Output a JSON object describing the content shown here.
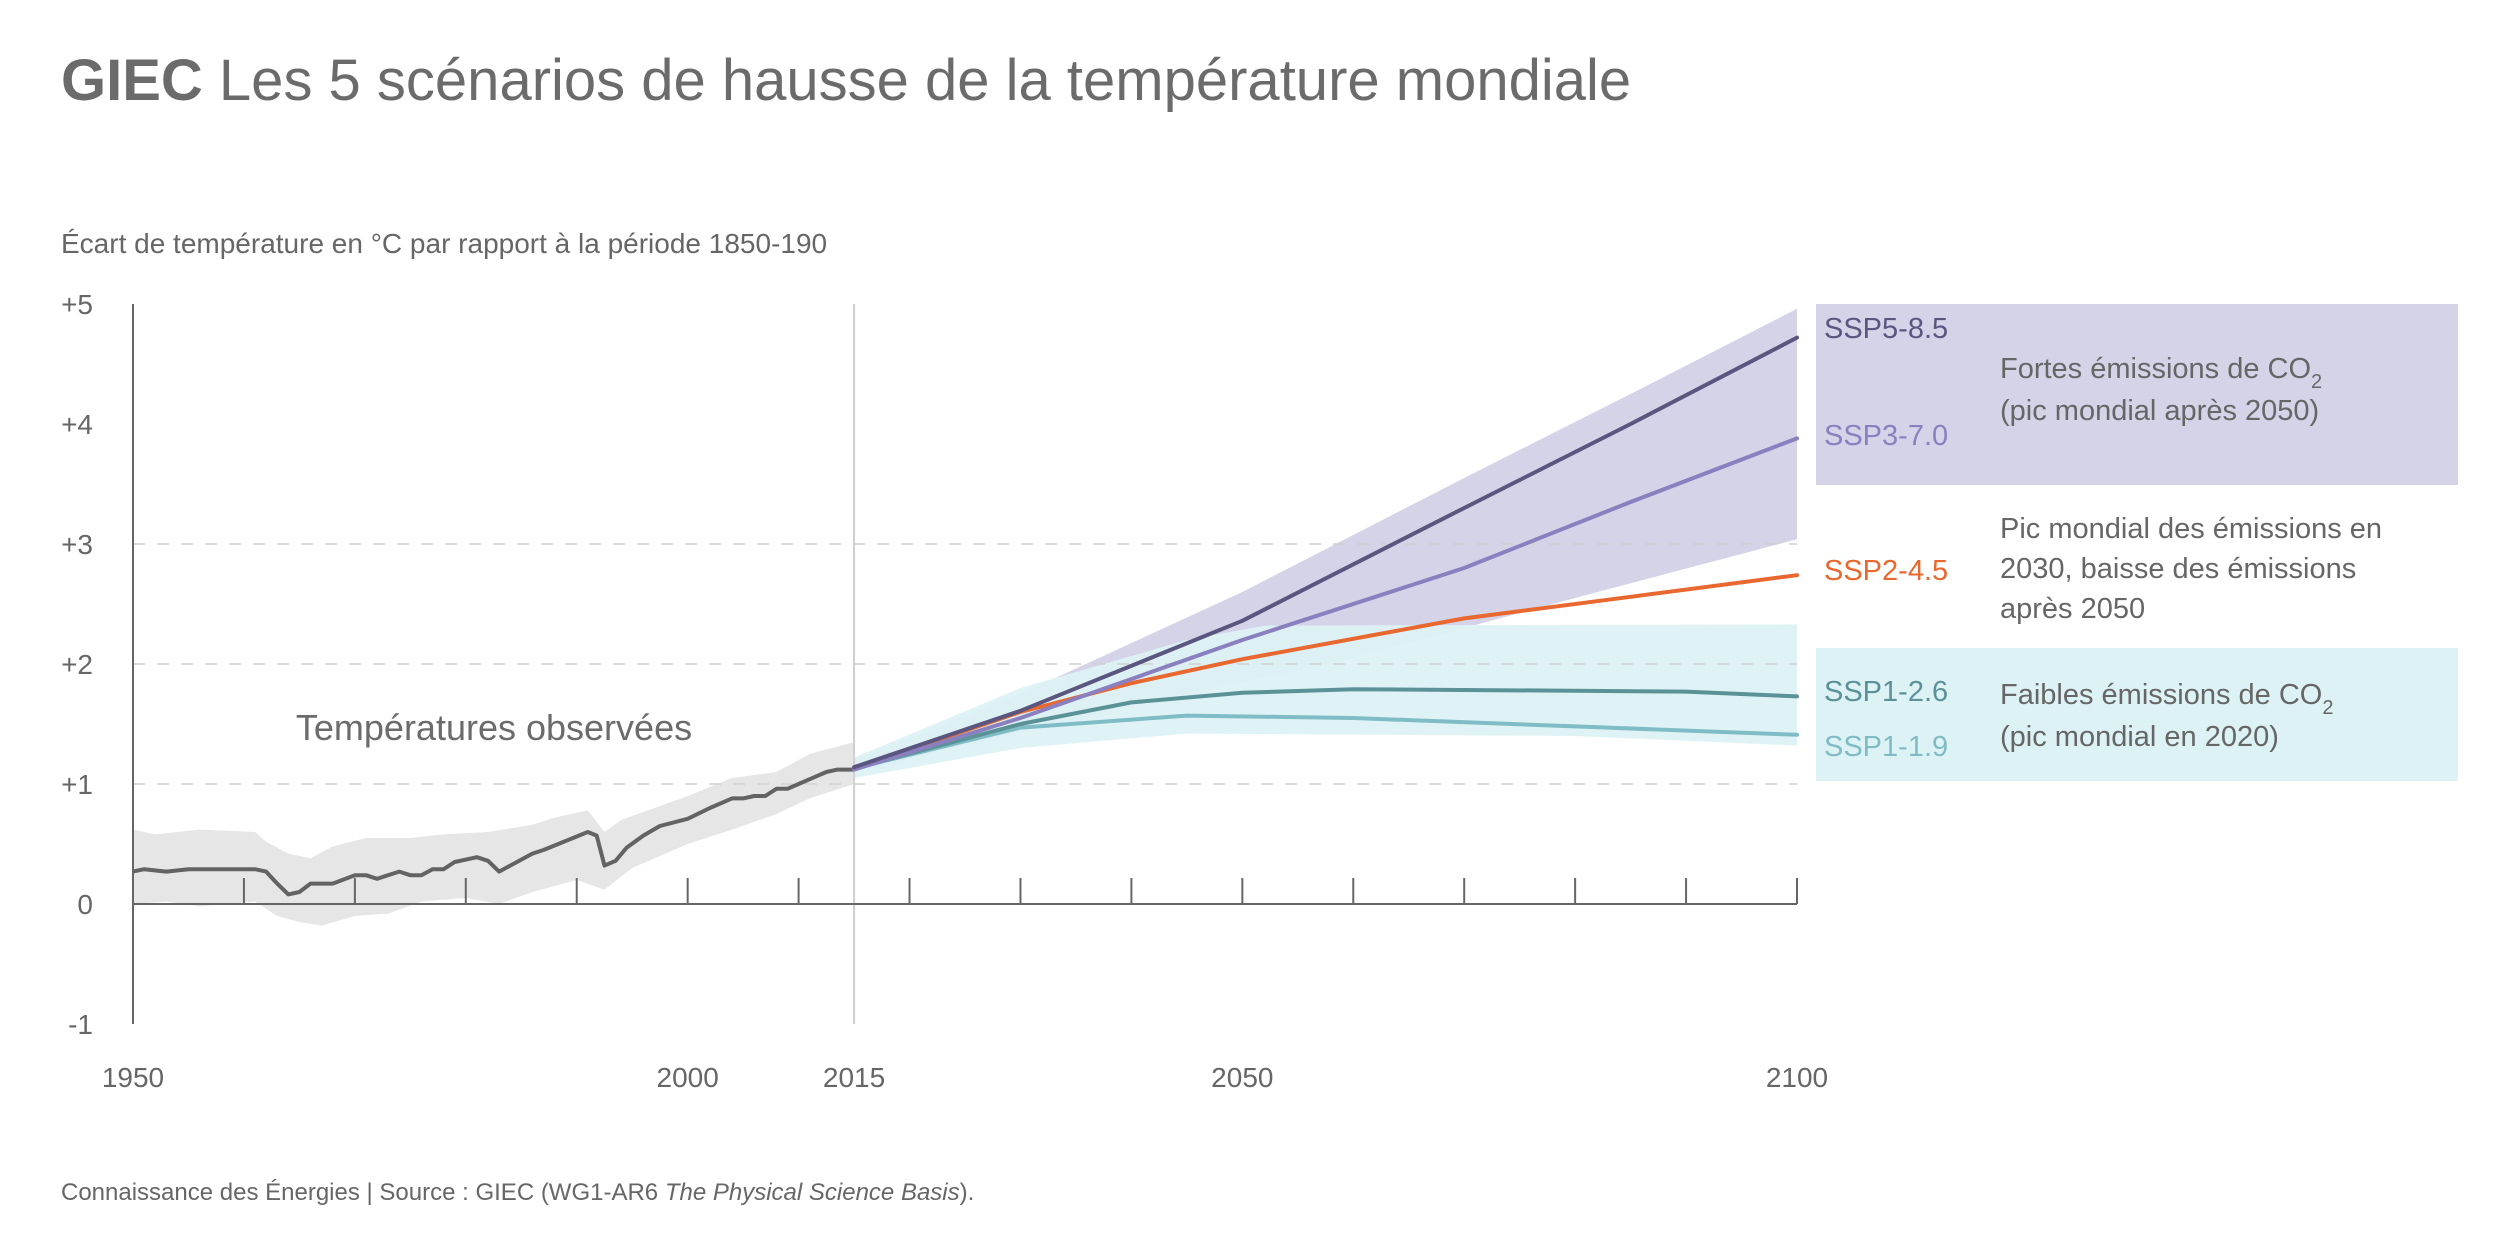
{
  "header": {
    "title_bold": "GIEC",
    "title_rest": " Les 5 scénarios de hausse de la température mondiale",
    "subtitle": "Écart de température en °C par rapport à la période 1850-190"
  },
  "footer": {
    "text": "Connaissance des Énergies | Source : GIEC (WG1-AR6 ",
    "italic": "The Physical Science Basis",
    "end": ")."
  },
  "legend": {
    "high": {
      "line1": "Fortes émissions de CO",
      "sub": "2",
      "line2": "(pic mondial après 2050)",
      "color": "#d4d3e8"
    },
    "mid": {
      "line1": "Pic mondial des émissions en",
      "line2": "2030, baisse des émissions",
      "line3": "après 2050"
    },
    "low": {
      "line1": "Faibles émissions de CO",
      "sub": "2",
      "line2": "(pic mondial en 2020)",
      "color": "#ddf2f5"
    }
  },
  "chart_data": {
    "type": "line",
    "ylabel": "Écart de température en °C par rapport à la période 1850-190",
    "xlim": [
      1950,
      2100
    ],
    "ylim": [
      -1,
      5
    ],
    "x_ticks": [
      {
        "value": 1950,
        "label": "1950"
      },
      {
        "value": 2000,
        "label": "2000"
      },
      {
        "value": 2015,
        "label": "2015"
      },
      {
        "value": 2050,
        "label": "2050"
      },
      {
        "value": 2100,
        "label": "2100"
      }
    ],
    "y_ticks": [
      {
        "value": 5,
        "label": "+5"
      },
      {
        "value": 4,
        "label": "+4"
      },
      {
        "value": 3,
        "label": "+3"
      },
      {
        "value": 2,
        "label": "+2"
      },
      {
        "value": 1,
        "label": "+1"
      },
      {
        "value": 0,
        "label": "0"
      },
      {
        "value": -1,
        "label": "-1"
      }
    ],
    "dashed_gridlines": [
      1,
      2,
      3
    ],
    "annotation": "Températures observées",
    "observed": {
      "color": "#636363",
      "band_color": "#e6e6e6",
      "points": [
        [
          1950,
          0.27
        ],
        [
          1951,
          0.29
        ],
        [
          1953,
          0.27
        ],
        [
          1955,
          0.29
        ],
        [
          1961,
          0.29
        ],
        [
          1962,
          0.27
        ],
        [
          1963,
          0.17
        ],
        [
          1964,
          0.08
        ],
        [
          1965,
          0.1
        ],
        [
          1966,
          0.17
        ],
        [
          1968,
          0.17
        ],
        [
          1970,
          0.24
        ],
        [
          1971,
          0.24
        ],
        [
          1972,
          0.21
        ],
        [
          1974,
          0.27
        ],
        [
          1975,
          0.24
        ],
        [
          1976,
          0.24
        ],
        [
          1977,
          0.29
        ],
        [
          1978,
          0.29
        ],
        [
          1979,
          0.35
        ],
        [
          1981,
          0.39
        ],
        [
          1982,
          0.36
        ],
        [
          1983,
          0.27
        ],
        [
          1984,
          0.32
        ],
        [
          1986,
          0.42
        ],
        [
          1987,
          0.45
        ],
        [
          1991,
          0.6
        ],
        [
          1991.8,
          0.57
        ],
        [
          1992.5,
          0.32
        ],
        [
          1993.5,
          0.36
        ],
        [
          1994.5,
          0.47
        ],
        [
          1996,
          0.57
        ],
        [
          1997.5,
          0.65
        ],
        [
          2000,
          0.71
        ],
        [
          2002,
          0.8
        ],
        [
          2004,
          0.88
        ],
        [
          2005,
          0.88
        ],
        [
          2006,
          0.9
        ],
        [
          2007,
          0.9
        ],
        [
          2008,
          0.96
        ],
        [
          2009,
          0.96
        ],
        [
          2010,
          1.0
        ],
        [
          2011.5,
          1.06
        ],
        [
          2012.5,
          1.1
        ],
        [
          2013.5,
          1.12
        ],
        [
          2015,
          1.12
        ]
      ],
      "band_upper": [
        [
          1950,
          0.62
        ],
        [
          1952,
          0.58
        ],
        [
          1956,
          0.62
        ],
        [
          1961,
          0.6
        ],
        [
          1962,
          0.52
        ],
        [
          1964,
          0.42
        ],
        [
          1966,
          0.38
        ],
        [
          1968,
          0.48
        ],
        [
          1971,
          0.55
        ],
        [
          1975,
          0.55
        ],
        [
          1978,
          0.58
        ],
        [
          1982,
          0.6
        ],
        [
          1986,
          0.66
        ],
        [
          1988,
          0.72
        ],
        [
          1991,
          0.78
        ],
        [
          1992.5,
          0.6
        ],
        [
          1994,
          0.7
        ],
        [
          1997,
          0.8
        ],
        [
          2000,
          0.9
        ],
        [
          2004,
          1.05
        ],
        [
          2008,
          1.1
        ],
        [
          2011,
          1.25
        ],
        [
          2015,
          1.35
        ]
      ],
      "band_lower": [
        [
          1950,
          0.0
        ],
        [
          1953,
          0.02
        ],
        [
          1956,
          -0.02
        ],
        [
          1961,
          0.02
        ],
        [
          1963,
          -0.1
        ],
        [
          1965,
          -0.15
        ],
        [
          1967,
          -0.18
        ],
        [
          1970,
          -0.1
        ],
        [
          1973,
          -0.08
        ],
        [
          1976,
          0.02
        ],
        [
          1980,
          0.05
        ],
        [
          1983,
          0.0
        ],
        [
          1986,
          0.1
        ],
        [
          1990,
          0.2
        ],
        [
          1992.5,
          0.12
        ],
        [
          1995,
          0.3
        ],
        [
          2000,
          0.5
        ],
        [
          2004,
          0.62
        ],
        [
          2008,
          0.75
        ],
        [
          2011,
          0.88
        ],
        [
          2015,
          1.0
        ]
      ]
    },
    "bands": [
      {
        "color": "#d4d3e8",
        "upper": [
          [
            2015,
            1.2
          ],
          [
            2030,
            1.75
          ],
          [
            2050,
            2.6
          ],
          [
            2070,
            3.55
          ],
          [
            2085,
            4.25
          ],
          [
            2100,
            4.96
          ]
        ],
        "lower": [
          [
            2015,
            1.1
          ],
          [
            2040,
            1.65
          ],
          [
            2060,
            2.05
          ],
          [
            2080,
            2.55
          ],
          [
            2100,
            3.04
          ]
        ]
      },
      {
        "color": "#ddf2f5",
        "upper": [
          [
            2015,
            1.22
          ],
          [
            2030,
            1.8
          ],
          [
            2045,
            2.2
          ],
          [
            2052,
            2.32
          ],
          [
            2100,
            2.33
          ]
        ],
        "lower": [
          [
            2015,
            1.05
          ],
          [
            2030,
            1.3
          ],
          [
            2045,
            1.42
          ],
          [
            2080,
            1.4
          ],
          [
            2100,
            1.32
          ]
        ]
      }
    ],
    "series": [
      {
        "name": "SSP5-8.5",
        "color": "#5a5680",
        "points": [
          [
            2015,
            1.14
          ],
          [
            2030,
            1.61
          ],
          [
            2050,
            2.36
          ],
          [
            2070,
            3.3
          ],
          [
            2085,
            4.0
          ],
          [
            2100,
            4.72
          ]
        ]
      },
      {
        "name": "SSP3-7.0",
        "color": "#8a80c0",
        "points": [
          [
            2015,
            1.12
          ],
          [
            2030,
            1.55
          ],
          [
            2050,
            2.2
          ],
          [
            2070,
            2.8
          ],
          [
            2085,
            3.35
          ],
          [
            2100,
            3.88
          ]
        ]
      },
      {
        "name": "SSP2-4.5",
        "color": "#e8682f",
        "points": [
          [
            2015,
            1.13
          ],
          [
            2030,
            1.6
          ],
          [
            2040,
            1.84
          ],
          [
            2050,
            2.04
          ],
          [
            2070,
            2.38
          ],
          [
            2085,
            2.56
          ],
          [
            2100,
            2.74
          ]
        ]
      },
      {
        "name": "SSP1-2.6",
        "color": "#5a9298",
        "points": [
          [
            2015,
            1.13
          ],
          [
            2030,
            1.5
          ],
          [
            2040,
            1.68
          ],
          [
            2050,
            1.76
          ],
          [
            2060,
            1.79
          ],
          [
            2090,
            1.77
          ],
          [
            2100,
            1.73
          ]
        ]
      },
      {
        "name": "SSP1-1.9",
        "color": "#7fbcc6",
        "points": [
          [
            2015,
            1.13
          ],
          [
            2030,
            1.47
          ],
          [
            2045,
            1.57
          ],
          [
            2060,
            1.55
          ],
          [
            2080,
            1.48
          ],
          [
            2100,
            1.41
          ]
        ]
      }
    ]
  }
}
